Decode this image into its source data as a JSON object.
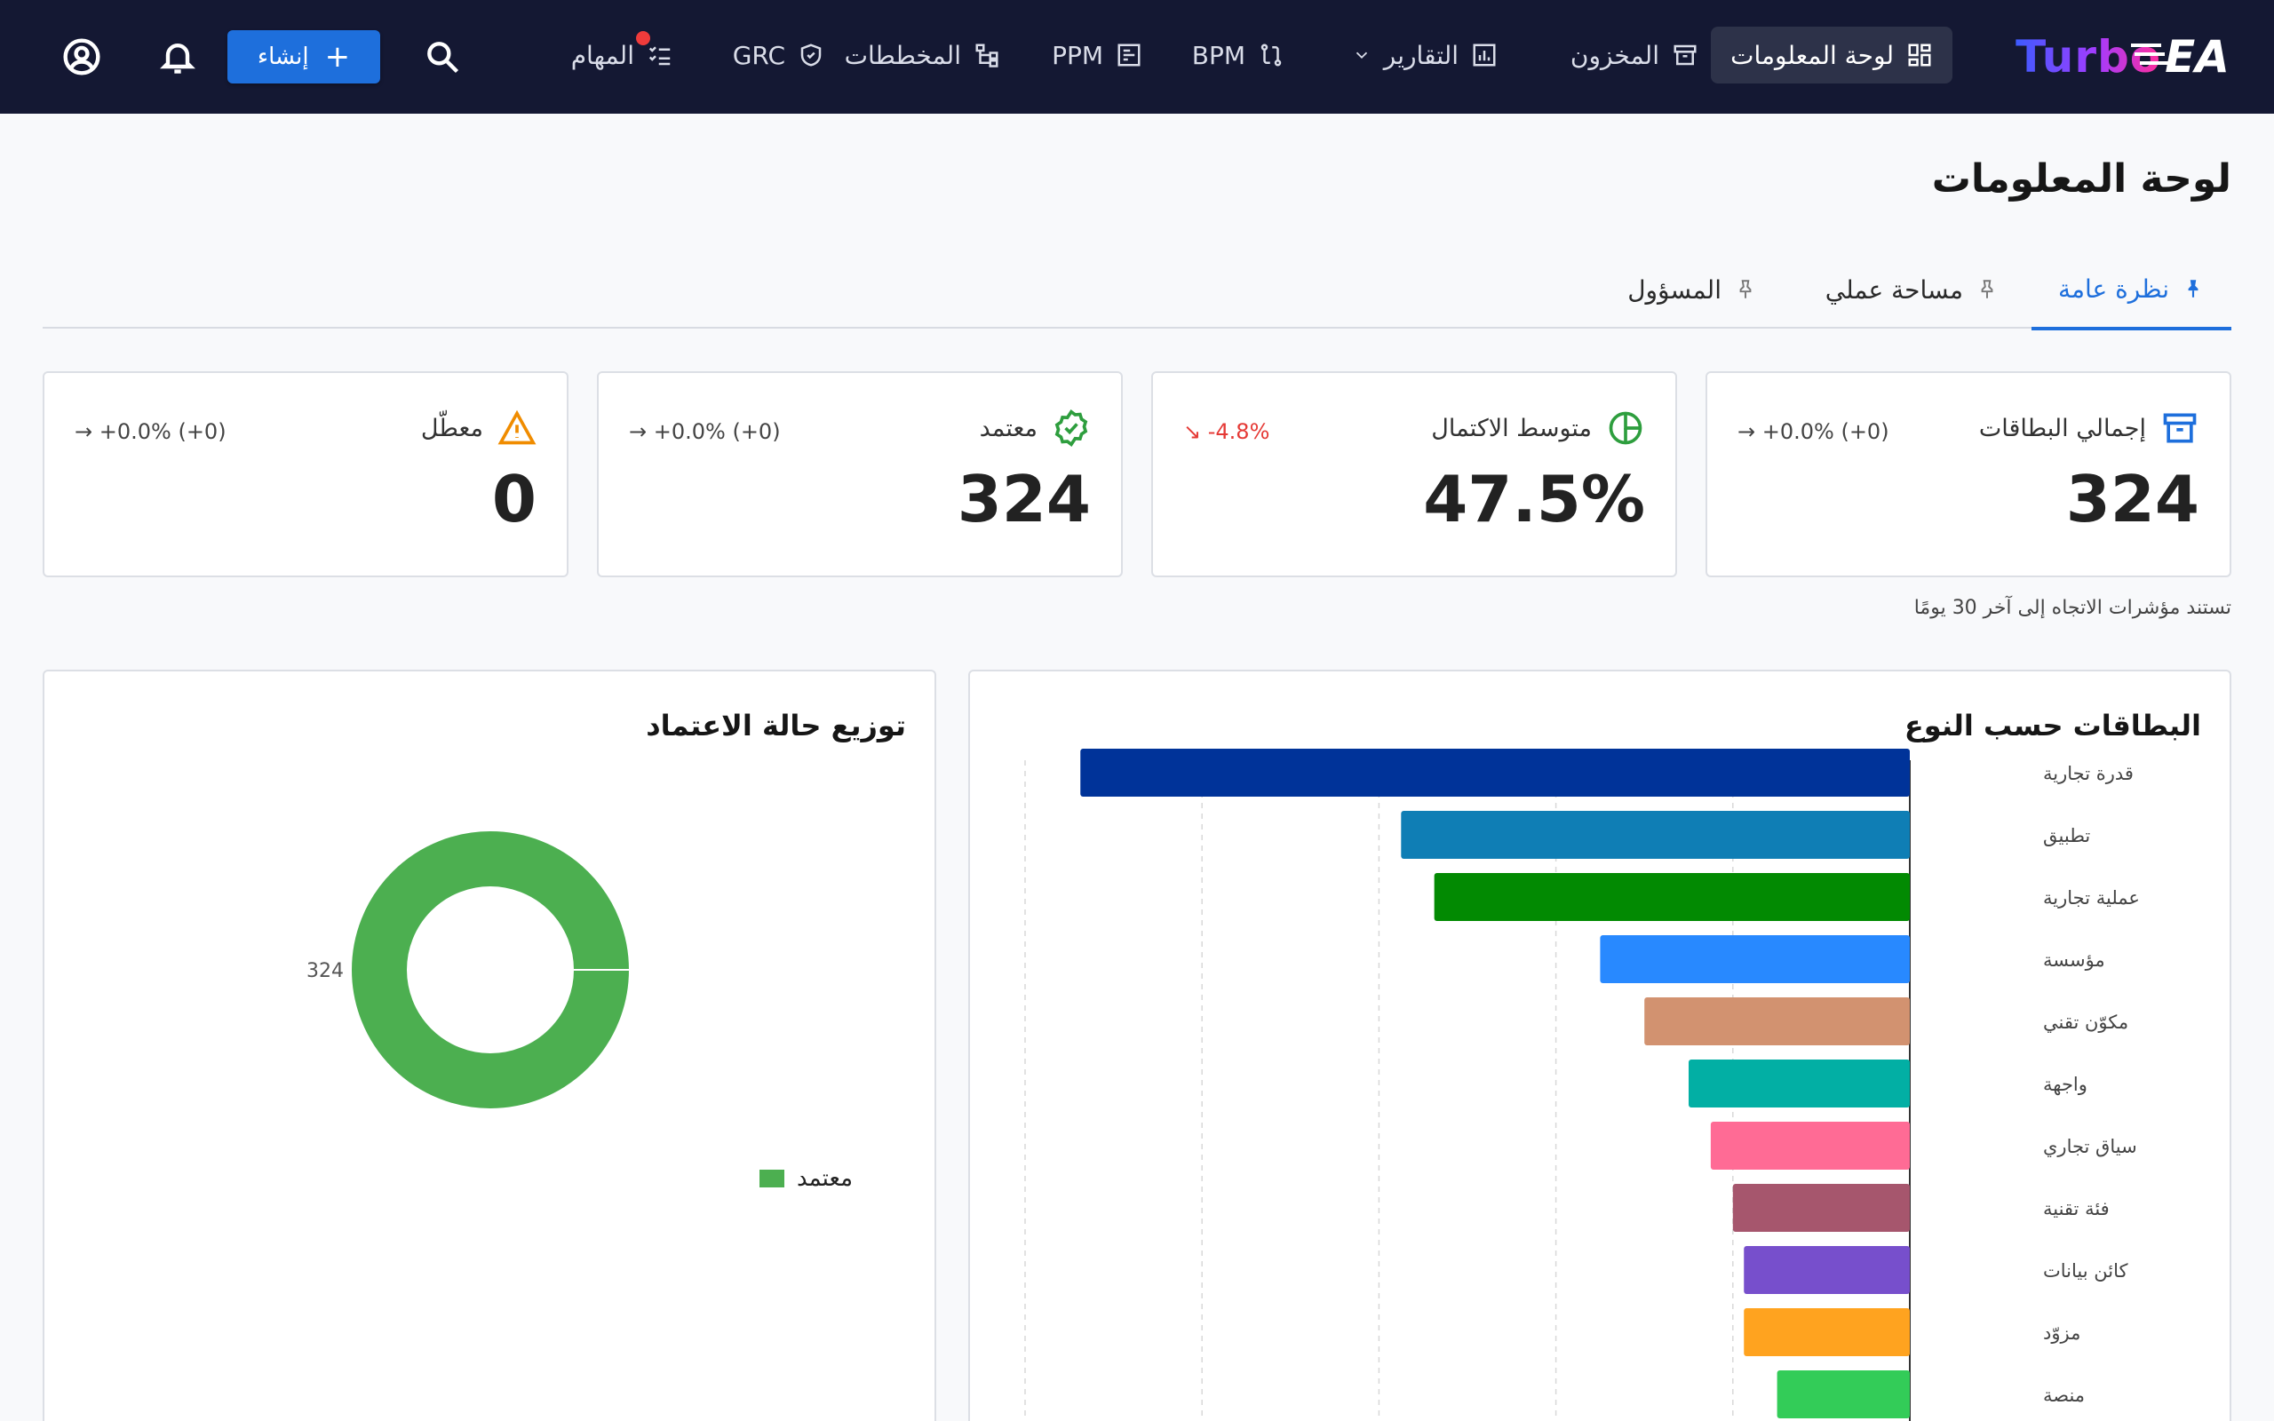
{
  "app": {
    "logo_text_1": "Turbo",
    "logo_text_2": "EA"
  },
  "nav": {
    "dashboard": "لوحة المعلومات",
    "inventory": "المخزون",
    "reports": "التقارير",
    "bpm": "BPM",
    "ppm": "PPM",
    "diagrams": "المخططات",
    "grc": "GRC",
    "tasks": "المهام"
  },
  "toolbar": {
    "create_label": "إنشاء",
    "create_plus": "+"
  },
  "page": {
    "title": "لوحة المعلومات"
  },
  "tabs": [
    {
      "label": "نظرة عامة",
      "active": true
    },
    {
      "label": "مساحة عملي",
      "active": false
    },
    {
      "label": "المسؤول",
      "active": false
    }
  ],
  "kpis": [
    {
      "label": "إجمالي البطاقات",
      "value": "324",
      "trend": "→  +0.0% (+0)",
      "trend_dir": "flat",
      "icon": "archive-icon",
      "color": "#1e6fdc"
    },
    {
      "label": "متوسط الاكتمال",
      "value": "47.5%",
      "trend": "↘  -4.8%",
      "trend_dir": "down",
      "icon": "pie-icon",
      "color": "#2e9e3e"
    },
    {
      "label": "معتمد",
      "value": "324",
      "trend": "→  +0.0% (+0)",
      "trend_dir": "flat",
      "icon": "verified-icon",
      "color": "#2e9e3e"
    },
    {
      "label": "معطّل",
      "value": "0",
      "trend": "→  +0.0% (+0)",
      "trend_dir": "flat",
      "icon": "warning-icon",
      "color": "#f08c00"
    }
  ],
  "kpi_note": "تستند مؤشرات الاتجاه إلى آخر 30 يومًا",
  "panels": {
    "cards_by_type_title": "البطاقات حسب النوع",
    "approval_title": "توزيع حالة الاعتماد"
  },
  "chart_data": [
    {
      "type": "bar",
      "orientation": "horizontal",
      "title": "البطاقات حسب النوع",
      "categories": [
        "قدرة تجارية",
        "تطبيق",
        "عملية تجارية",
        "مؤسسة",
        "مكوّن تقني",
        "واجهة",
        "سياق تجاري",
        "فئة تقنية",
        "كائن بيانات",
        "مزوّد",
        "منصة"
      ],
      "values": [
        75,
        46,
        43,
        28,
        24,
        20,
        18,
        16,
        15,
        15,
        12
      ],
      "colors": [
        "#003399",
        "#0f7eb5",
        "#028a02",
        "#2889ff",
        "#d29270",
        "#02afa4",
        "#ff6b95",
        "#a6566d",
        "#774fcc",
        "#ffa31f",
        "#33cc58"
      ],
      "xlim": [
        0,
        80
      ],
      "grid": true
    },
    {
      "type": "pie",
      "donut": true,
      "title": "توزيع حالة الاعتماد",
      "categories": [
        "معتمد"
      ],
      "values": [
        324
      ],
      "colors": [
        "#4caf50"
      ],
      "legend": "bottom-right"
    }
  ]
}
